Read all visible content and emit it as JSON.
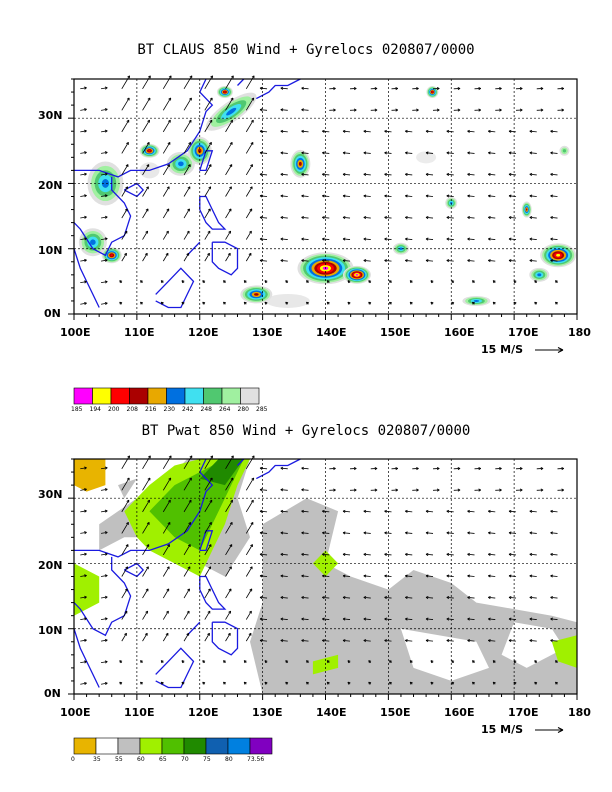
{
  "panel1": {
    "title": "BT CLAUS 850 Wind + Gyrelocs 020807/0000",
    "lat_labels": [
      "30N",
      "20N",
      "10N",
      "0N"
    ],
    "lon_labels": [
      "100E",
      "110E",
      "120E",
      "130E",
      "140E",
      "150E",
      "160E",
      "170E",
      "180"
    ],
    "vector_ref": "15 M/S",
    "legend_colors": [
      "#ff00ff",
      "#ffff00",
      "#ff0000",
      "#aa0000",
      "#e8a800",
      "#0070e0",
      "#40e0f0",
      "#50c870",
      "#a0f0a0",
      "#e0e0e0"
    ],
    "legend_labels": [
      "185",
      "194",
      "200",
      "208",
      "216",
      "230",
      "242",
      "248",
      "264",
      "280",
      "285"
    ]
  },
  "panel2": {
    "title": "BT Pwat 850 Wind + Gyrelocs 020807/0000",
    "lat_labels": [
      "30N",
      "20N",
      "10N",
      "0N"
    ],
    "lon_labels": [
      "100E",
      "110E",
      "120E",
      "130E",
      "140E",
      "150E",
      "160E",
      "170E",
      "180"
    ],
    "vector_ref": "15 M/S",
    "legend_colors": [
      "#e8b400",
      "#ffffff",
      "#c0c0c0",
      "#a0f000",
      "#50c000",
      "#208a00",
      "#1060b0",
      "#0080e0",
      "#8000c0"
    ],
    "legend_labels": [
      "0",
      "35",
      "55",
      "60",
      "65",
      "70",
      "75",
      "80",
      "73.56"
    ]
  }
}
